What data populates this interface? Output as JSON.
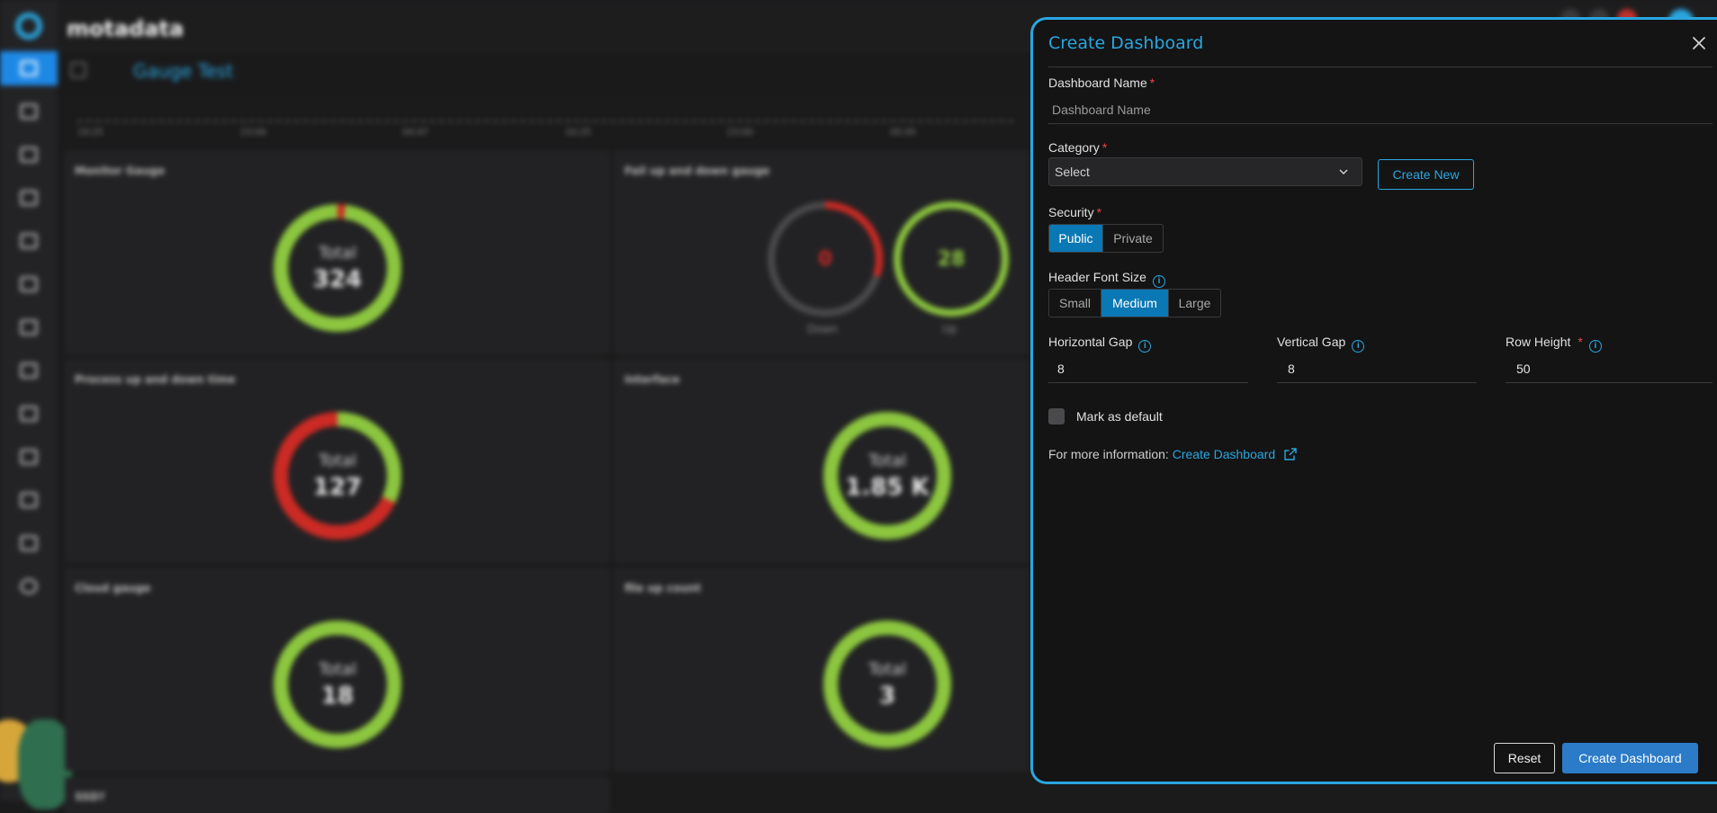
{
  "app": {
    "brand": "motadata",
    "dashboard_title": "Gauge Test",
    "timeline_labels": [
      "19:25",
      "23:00",
      "04:47",
      "10:25",
      "23:00",
      "05:45"
    ],
    "widgets": [
      {
        "title": "Monitor Gauge",
        "gauge_label": "Total",
        "gauge_value": "324"
      },
      {
        "title": "Fail up and down gauge",
        "down_value": "0",
        "down_label": "Down",
        "up_value": "28",
        "up_label": "Up"
      },
      {
        "title": "Process up and down time",
        "gauge_label": "Total",
        "gauge_value": "127"
      },
      {
        "title": "Interface",
        "gauge_label": "Total",
        "gauge_value": "1.85 K"
      },
      {
        "title": "Cloud gauge",
        "gauge_label": "Total",
        "gauge_value": "18"
      },
      {
        "title": "file up count",
        "gauge_label": "Total",
        "gauge_value": "3"
      },
      {
        "title": "SSD?"
      }
    ],
    "colors": {
      "accent": "#2aa6df",
      "gauge_green": "#8cc63f",
      "gauge_red": "#cc2a24",
      "primary_button": "#2b7bc8",
      "selected_segment": "#0a78b4"
    }
  },
  "panel": {
    "title": "Create Dashboard",
    "close_icon": "close-icon",
    "dashboard_name": {
      "label": "Dashboard Name",
      "placeholder": "Dashboard Name",
      "value": ""
    },
    "category": {
      "label": "Category",
      "selected": "Select",
      "create_new_label": "Create New"
    },
    "security": {
      "label": "Security",
      "options": [
        "Public",
        "Private"
      ],
      "selected": "Public"
    },
    "header_font_size": {
      "label": "Header Font Size",
      "options": [
        "Small",
        "Medium",
        "Large"
      ],
      "selected": "Medium"
    },
    "horizontal_gap": {
      "label": "Horizontal Gap",
      "value": "8"
    },
    "vertical_gap": {
      "label": "Vertical Gap",
      "value": "8"
    },
    "row_height": {
      "label": "Row Height",
      "value": "50"
    },
    "mark_default": {
      "label": "Mark as default",
      "checked": false
    },
    "more_info": {
      "prefix": "For more information:",
      "link_text": "Create Dashboard"
    },
    "reset_label": "Reset",
    "submit_label": "Create Dashboard"
  }
}
